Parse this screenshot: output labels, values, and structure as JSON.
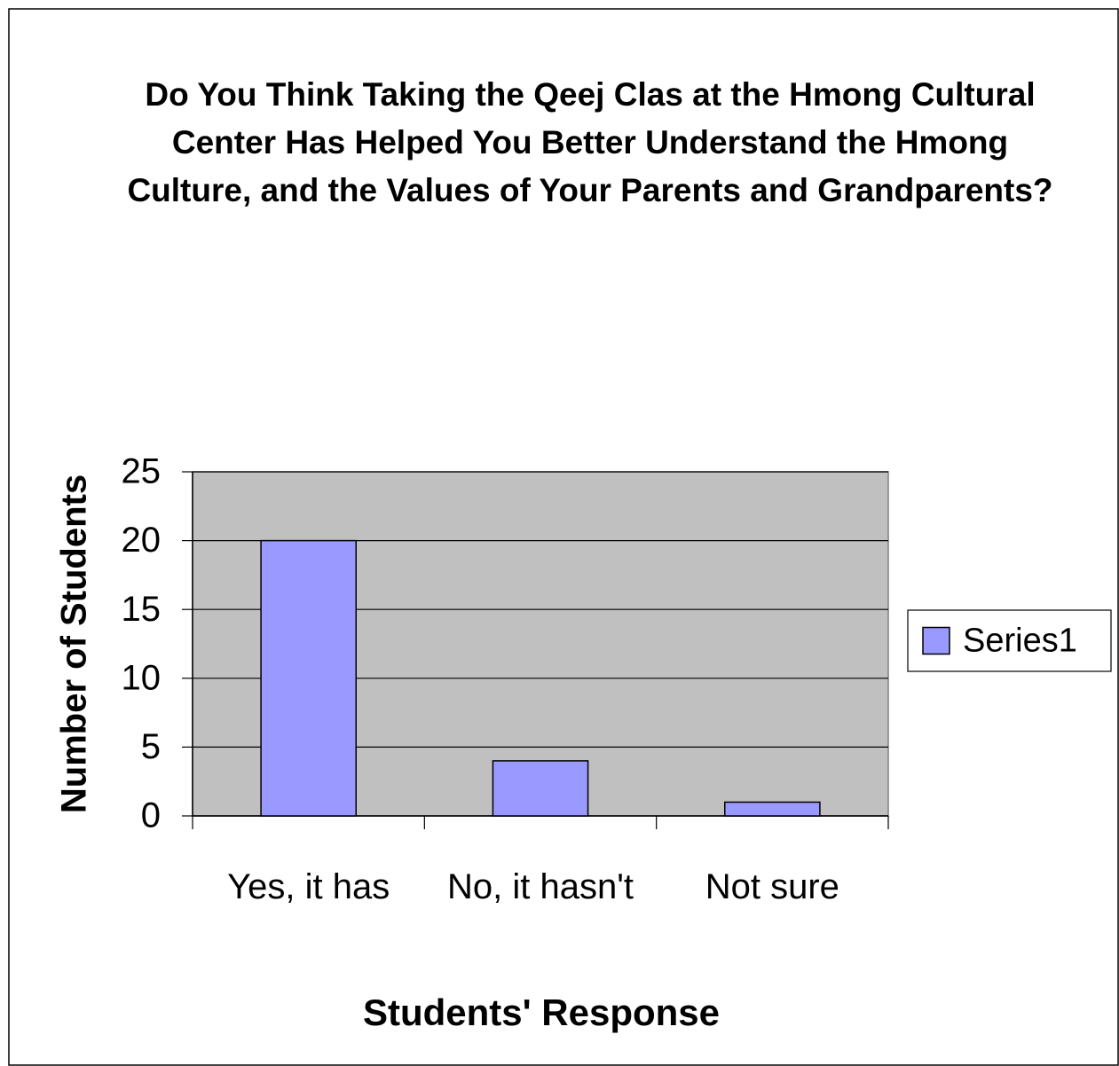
{
  "chart_data": {
    "type": "bar",
    "title": "Do You Think Taking the Qeej Clas at the Hmong Cultural Center Has Helped You Better Understand the Hmong Culture, and the Values of Your Parents and Grandparents?",
    "x_label": "Students' Response",
    "y_label": "Number of Students",
    "categories": [
      "Yes, it has",
      "No, it hasn't",
      "Not sure"
    ],
    "series": [
      {
        "name": "Series1",
        "color": "#9999ff",
        "values": [
          20,
          4,
          1
        ]
      }
    ],
    "ylim": [
      0,
      25
    ],
    "yticks": [
      0,
      5,
      10,
      15,
      20,
      25
    ],
    "grid": true,
    "legend": "right",
    "plot_background": "#c0c0c0"
  }
}
